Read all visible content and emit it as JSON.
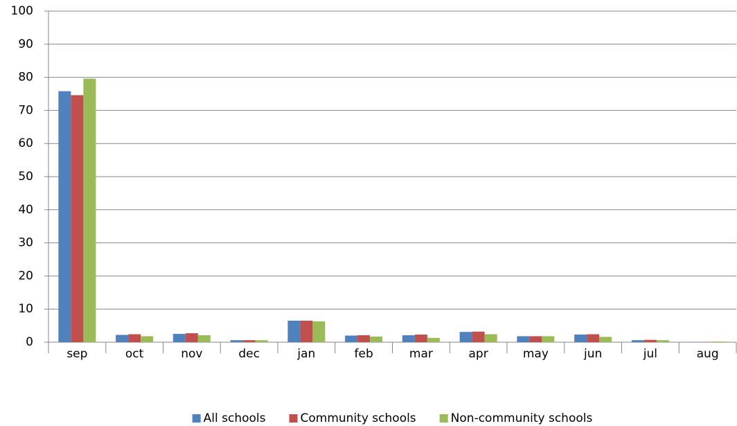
{
  "chart_data": {
    "type": "bar",
    "categories": [
      "sep",
      "oct",
      "nov",
      "dec",
      "jan",
      "feb",
      "mar",
      "apr",
      "may",
      "jun",
      "jul",
      "aug"
    ],
    "series": [
      {
        "name": "All schools",
        "color": "#4f81bd",
        "values": [
          75.8,
          2.2,
          2.5,
          0.6,
          6.5,
          2.0,
          2.1,
          3.1,
          1.8,
          2.3,
          0.6,
          0.1
        ]
      },
      {
        "name": "Community schools",
        "color": "#c0504d",
        "values": [
          74.6,
          2.4,
          2.7,
          0.6,
          6.5,
          2.1,
          2.3,
          3.2,
          1.8,
          2.4,
          0.7,
          0.1
        ]
      },
      {
        "name": "Non-community schools",
        "color": "#9bbb59",
        "values": [
          79.6,
          1.8,
          2.1,
          0.6,
          6.3,
          1.7,
          1.3,
          2.4,
          1.8,
          1.6,
          0.6,
          0.2
        ]
      }
    ],
    "ylim": [
      0,
      100
    ],
    "yticks": [
      0,
      10,
      20,
      30,
      40,
      50,
      60,
      70,
      80,
      90,
      100
    ],
    "grid": true,
    "legend": "bottom"
  }
}
